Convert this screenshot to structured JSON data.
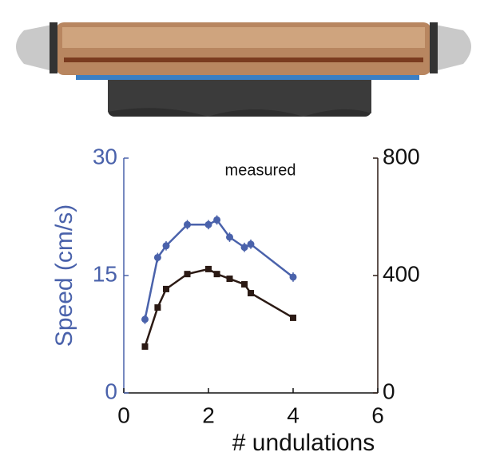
{
  "chart_data": {
    "type": "line",
    "annotation": "measured",
    "xlabel": "# undulations",
    "ylabel": "Speed (cm/s)",
    "x": [
      0.5,
      0.8,
      1.0,
      1.5,
      2.0,
      2.2,
      2.5,
      2.85,
      3.0,
      4.0
    ],
    "xlim": [
      0,
      6
    ],
    "xticks": [
      0,
      2,
      4,
      6
    ],
    "ylim": [
      0,
      30
    ],
    "yticks": [
      0,
      15,
      30
    ],
    "y2lim": [
      0,
      800
    ],
    "y2ticks": [
      0,
      400,
      800
    ],
    "series": [
      {
        "color": "#4a62ab",
        "marker": "circle",
        "values": [
          9.4,
          17.3,
          18.8,
          21.5,
          21.5,
          22.1,
          19.9,
          18.6,
          19.0,
          14.8
        ],
        "errors": [
          0.6,
          0.6,
          0.6,
          0.6,
          0.6,
          0.6,
          0.6,
          0.6,
          0.6,
          0.6
        ]
      },
      {
        "color": "#2b1a14",
        "marker": "square",
        "axis": "y2",
        "values": [
          158,
          291,
          354,
          405,
          422,
          405,
          389,
          370,
          340,
          256
        ]
      }
    ]
  }
}
